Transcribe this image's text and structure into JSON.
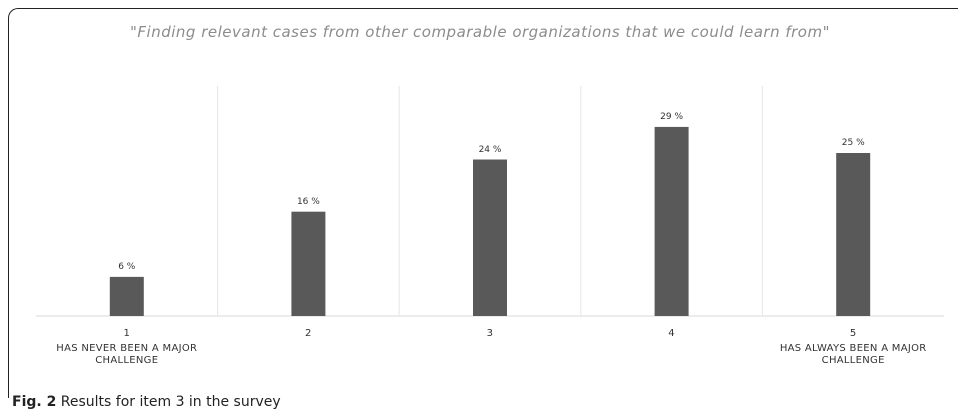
{
  "chart_data": {
    "type": "bar",
    "title": "\"Finding relevant cases from other comparable organizations that we could learn from\"",
    "categories": [
      "1",
      "2",
      "3",
      "4",
      "5"
    ],
    "category_descriptions": [
      "HAS NEVER BEEN A MAJOR CHALLENGE",
      null,
      null,
      null,
      "HAS ALWAYS BEEN A MAJOR CHALLENGE"
    ],
    "values": [
      6,
      16,
      24,
      29,
      25
    ],
    "value_labels": [
      "6 %",
      "16 %",
      "24 %",
      "29 %",
      "25 %"
    ],
    "color": "#595959"
  },
  "caption": {
    "label": "Fig. 2",
    "text": "Results for item 3 in the survey"
  }
}
